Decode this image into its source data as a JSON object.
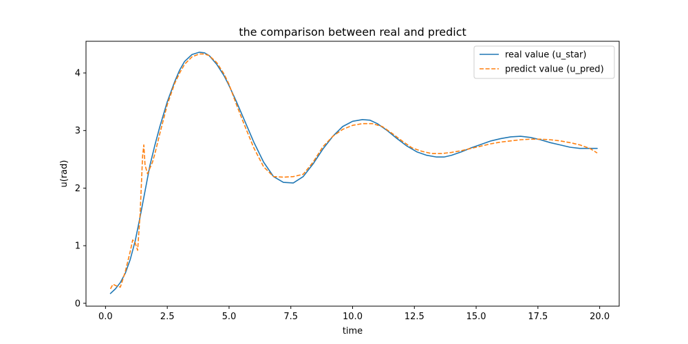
{
  "chart_data": {
    "type": "line",
    "title": "the comparison between real and predict",
    "xlabel": "time",
    "ylabel": "u(rad)",
    "xlim": [
      -0.79,
      20.79
    ],
    "ylim": [
      -0.05,
      4.55
    ],
    "xticks": [
      0.0,
      2.5,
      5.0,
      7.5,
      10.0,
      12.5,
      15.0,
      17.5,
      20.0
    ],
    "xtick_labels": [
      "0.0",
      "2.5",
      "5.0",
      "7.5",
      "10.0",
      "12.5",
      "15.0",
      "17.5",
      "20.0"
    ],
    "yticks": [
      0,
      1,
      2,
      3,
      4
    ],
    "ytick_labels": [
      "0",
      "1",
      "2",
      "3",
      "4"
    ],
    "grid": false,
    "legend_position": "top-right",
    "series": [
      {
        "name": "real value (u_star)",
        "style": "solid",
        "color": "#1f77b4",
        "x": [
          0.2,
          0.4,
          0.6,
          0.8,
          1.0,
          1.2,
          1.4,
          1.6,
          1.8,
          2.0,
          2.2,
          2.5,
          2.8,
          3.0,
          3.2,
          3.5,
          3.8,
          4.0,
          4.2,
          4.5,
          4.8,
          5.0,
          5.3,
          5.6,
          6.0,
          6.4,
          6.8,
          7.2,
          7.6,
          8.0,
          8.4,
          8.8,
          9.2,
          9.6,
          10.0,
          10.4,
          10.7,
          11.0,
          11.4,
          11.8,
          12.2,
          12.6,
          13.0,
          13.4,
          13.7,
          14.0,
          14.4,
          14.8,
          15.2,
          15.6,
          16.0,
          16.4,
          16.8,
          17.2,
          17.6,
          18.0,
          18.4,
          18.8,
          19.2,
          19.6,
          19.9
        ],
        "y": [
          0.17,
          0.25,
          0.36,
          0.52,
          0.76,
          1.08,
          1.5,
          1.95,
          2.4,
          2.75,
          3.07,
          3.5,
          3.85,
          4.05,
          4.2,
          4.32,
          4.36,
          4.35,
          4.3,
          4.15,
          3.95,
          3.78,
          3.5,
          3.2,
          2.8,
          2.45,
          2.2,
          2.1,
          2.09,
          2.2,
          2.42,
          2.68,
          2.9,
          3.07,
          3.16,
          3.19,
          3.18,
          3.12,
          3.0,
          2.86,
          2.73,
          2.63,
          2.57,
          2.54,
          2.54,
          2.57,
          2.63,
          2.7,
          2.76,
          2.82,
          2.86,
          2.89,
          2.9,
          2.88,
          2.84,
          2.79,
          2.75,
          2.71,
          2.69,
          2.69,
          2.69
        ]
      },
      {
        "name": "predict value (u_pred)",
        "style": "dashed",
        "color": "#ff7f0e",
        "x": [
          0.2,
          0.3,
          0.45,
          0.6,
          0.8,
          1.0,
          1.1,
          1.2,
          1.3,
          1.4,
          1.5,
          1.55,
          1.6,
          1.7,
          1.9,
          2.0,
          2.2,
          2.5,
          2.8,
          3.0,
          3.2,
          3.5,
          3.8,
          4.0,
          4.2,
          4.5,
          4.8,
          5.0,
          5.3,
          5.6,
          6.0,
          6.4,
          6.8,
          7.2,
          7.6,
          8.0,
          8.4,
          8.8,
          9.2,
          9.6,
          10.0,
          10.4,
          10.8,
          11.2,
          11.6,
          12.0,
          12.4,
          12.8,
          13.2,
          13.6,
          14.0,
          14.4,
          14.8,
          15.2,
          15.6,
          16.0,
          16.4,
          16.8,
          17.2,
          17.6,
          18.0,
          18.4,
          18.8,
          19.2,
          19.6,
          19.9
        ],
        "y": [
          0.25,
          0.33,
          0.3,
          0.28,
          0.55,
          0.9,
          1.1,
          1.05,
          0.92,
          1.55,
          2.55,
          2.75,
          2.4,
          2.25,
          2.45,
          2.6,
          2.95,
          3.45,
          3.82,
          4.0,
          4.15,
          4.28,
          4.33,
          4.33,
          4.3,
          4.18,
          3.98,
          3.8,
          3.45,
          3.12,
          2.7,
          2.37,
          2.2,
          2.19,
          2.2,
          2.24,
          2.45,
          2.72,
          2.9,
          3.02,
          3.09,
          3.12,
          3.12,
          3.07,
          2.95,
          2.82,
          2.7,
          2.64,
          2.6,
          2.6,
          2.62,
          2.65,
          2.69,
          2.73,
          2.77,
          2.8,
          2.82,
          2.84,
          2.85,
          2.85,
          2.84,
          2.82,
          2.79,
          2.75,
          2.69,
          2.61
        ]
      }
    ]
  }
}
